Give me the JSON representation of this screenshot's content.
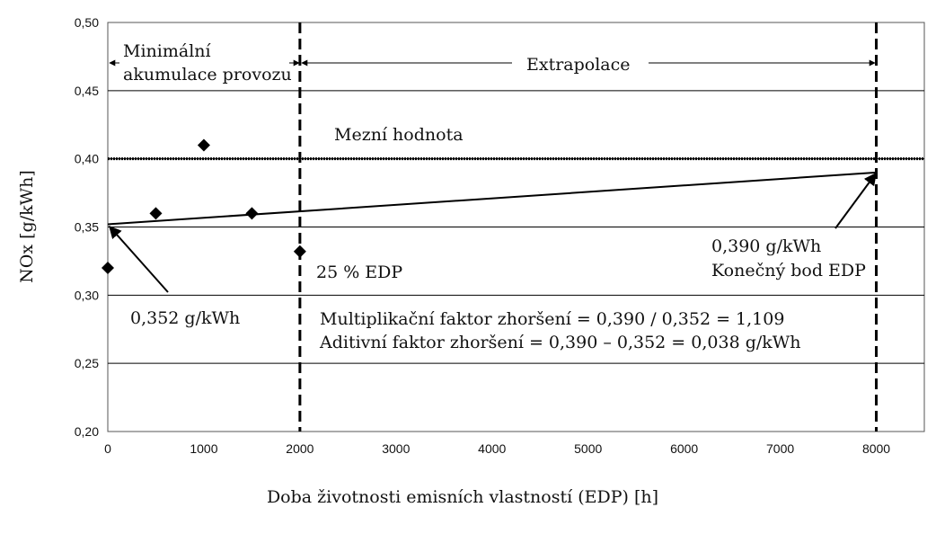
{
  "chart_data": {
    "type": "scatter",
    "xlabel": "Doba životnosti emisních vlastností (EDP)  [h]",
    "ylabel": "NOx  [g/kWh]",
    "xlim": [
      0,
      8500
    ],
    "ylim": [
      0.2,
      0.5
    ],
    "x_ticks": [
      0,
      1000,
      2000,
      3000,
      4000,
      5000,
      6000,
      7000,
      8000
    ],
    "x_tick_labels": [
      "0",
      "1000",
      "2000",
      "3000",
      "4000",
      "5000",
      "6000",
      "7000",
      "8000"
    ],
    "y_ticks": [
      0.2,
      0.25,
      0.3,
      0.35,
      0.4,
      0.45,
      0.5
    ],
    "y_tick_labels": [
      "0,20",
      "0,25",
      "0,30",
      "0,35",
      "0,40",
      "0,45",
      "0,50"
    ],
    "grid": "horizontal",
    "series": [
      {
        "marker": "diamond",
        "points": [
          {
            "x": 0,
            "y": 0.32
          },
          {
            "x": 500,
            "y": 0.36
          },
          {
            "x": 1000,
            "y": 0.41
          },
          {
            "x": 1500,
            "y": 0.36
          },
          {
            "x": 2000,
            "y": 0.332
          }
        ]
      }
    ],
    "trend_line": {
      "x": [
        0,
        8000
      ],
      "y": [
        0.352,
        0.39
      ]
    },
    "limit_line": {
      "y": 0.4,
      "label": "Mezní hodnota"
    },
    "vertical_lines": [
      2000,
      8000
    ],
    "annotations": {
      "min_accumulation_line1": "Minimální",
      "min_accumulation_line2": "akumulace provozu",
      "extrapolation": "Extrapolace",
      "edp_25": "25 % EDP",
      "start_value": "0,352 g/kWh",
      "end_value": "0,390 g/kWh",
      "end_point": "Konečný  bod  EDP",
      "multiplicative": "Multiplikační faktor zhoršení = 0,390 / 0,352 = 1,109",
      "additive": "Aditivní faktor zhoršení = 0,390 –   0,352 = 0,038 g/kWh"
    }
  }
}
